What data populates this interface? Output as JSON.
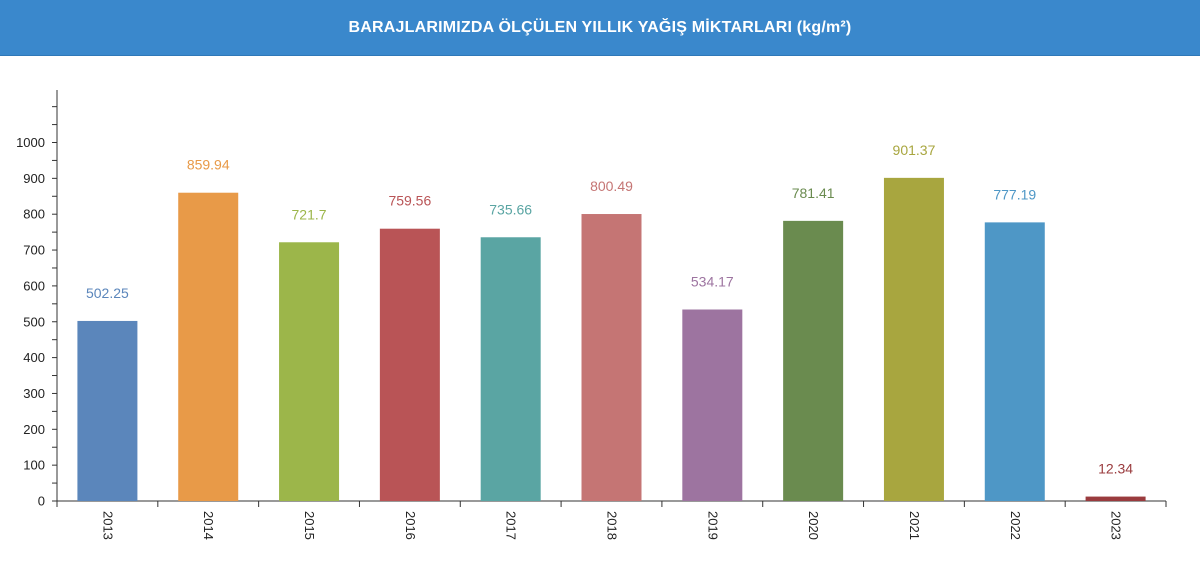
{
  "header": {
    "title": "BARAJLARIMIZDA ÖLÇÜLEN YILLIK YAĞIŞ MİKTARLARI (kg/m²)"
  },
  "chart_data": {
    "type": "bar",
    "title": "BARAJLARIMIZDA ÖLÇÜLEN YILLIK YAĞIŞ MİKTARLARI (kg/m²)",
    "xlabel": "",
    "ylabel": "",
    "ylim": [
      0,
      1150
    ],
    "yticks": [
      0,
      100,
      200,
      300,
      400,
      500,
      600,
      700,
      800,
      900,
      1000
    ],
    "grid": false,
    "legend": "none",
    "categories": [
      "2013",
      "2014",
      "2015",
      "2016",
      "2017",
      "2018",
      "2019",
      "2020",
      "2021",
      "2022",
      "2023"
    ],
    "values": [
      502.25,
      859.94,
      721.7,
      759.56,
      735.66,
      800.49,
      534.17,
      781.41,
      901.37,
      777.19,
      12.34
    ],
    "value_labels": [
      "502.25",
      "859.94",
      "721.7",
      "759.56",
      "735.66",
      "800.49",
      "534.17",
      "781.41",
      "901.37",
      "777.19",
      "12.34"
    ],
    "colors": [
      "#5b86bb",
      "#e89a48",
      "#9cb64a",
      "#b95456",
      "#5aa5a3",
      "#c57574",
      "#9d74a0",
      "#6a8b4f",
      "#a8a63f",
      "#4e97c6",
      "#9a3b3e"
    ],
    "label_colors": [
      "#5b86bb",
      "#e89a48",
      "#9cb64a",
      "#b95456",
      "#5aa5a3",
      "#c57574",
      "#9d74a0",
      "#6a8b4f",
      "#a8a63f",
      "#4e97c6",
      "#9a3b3e"
    ]
  }
}
